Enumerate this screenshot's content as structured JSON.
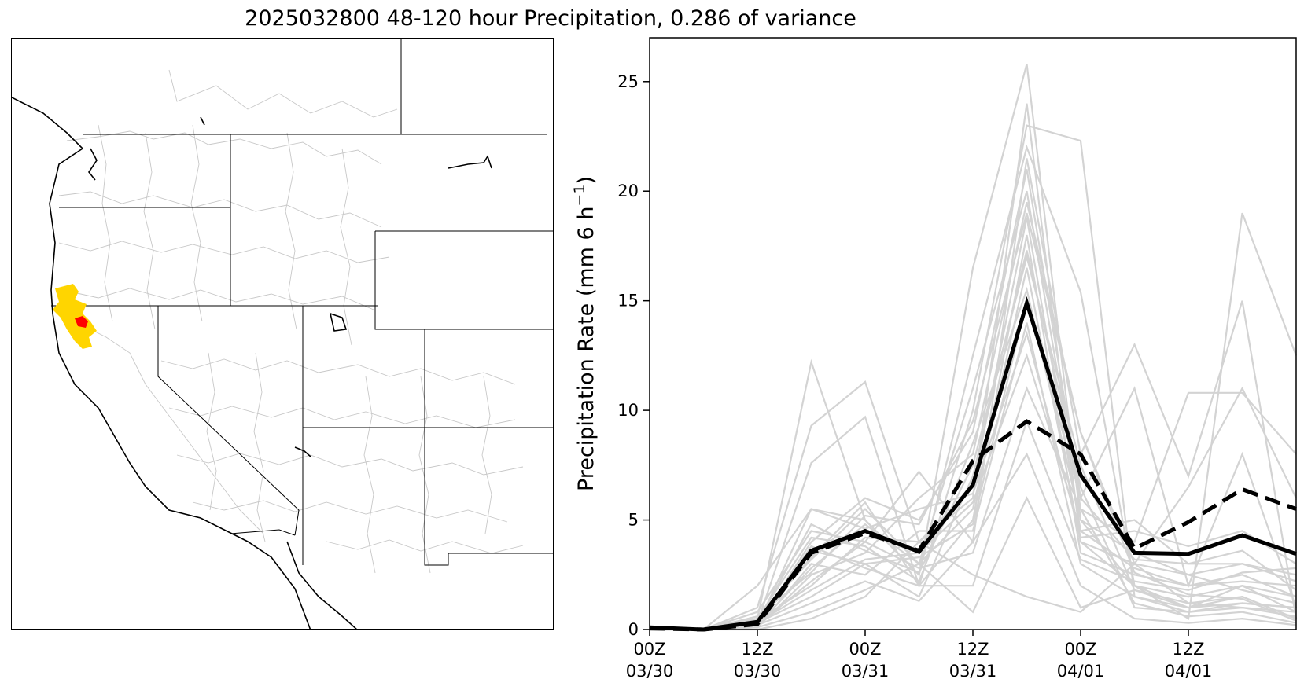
{
  "title": "2025032800 48-120 hour Precipitation, 0.286 of variance",
  "colors": {
    "member_line": "#d3d3d3",
    "ens_mean_line": "#000000",
    "basin_outline": "#c8c8c8",
    "highlight_region": "#ffd500",
    "highlight_core": "#ff0000"
  },
  "map": {
    "projection": "Lambert Conformal, Western United States",
    "highlight_region_location": "Northern California coast"
  },
  "chart_data": {
    "type": "line",
    "title": "",
    "xlabel": "",
    "ylabel": "Precipitation Rate (mm 6 h",
    "ylabel_exponent": "−1",
    "ylabel_suffix": ")",
    "ylim": [
      0,
      27
    ],
    "yticks": [
      0,
      5,
      10,
      15,
      20,
      25
    ],
    "x": [
      "2025-03-30 00Z",
      "2025-03-30 06Z",
      "2025-03-30 12Z",
      "2025-03-30 18Z",
      "2025-03-31 00Z",
      "2025-03-31 06Z",
      "2025-03-31 12Z",
      "2025-03-31 18Z",
      "2025-04-01 00Z",
      "2025-04-01 06Z",
      "2025-04-01 12Z",
      "2025-04-01 18Z",
      "2025-04-02 00Z"
    ],
    "xticks": [
      {
        "index": 0,
        "line1": "00Z",
        "line2": "03/30"
      },
      {
        "index": 2,
        "line1": "12Z",
        "line2": "03/30"
      },
      {
        "index": 4,
        "line1": "00Z",
        "line2": "03/31"
      },
      {
        "index": 6,
        "line1": "12Z",
        "line2": "03/31"
      },
      {
        "index": 8,
        "line1": "00Z",
        "line2": "04/01"
      },
      {
        "index": 10,
        "line1": "12Z",
        "line2": "04/01"
      }
    ],
    "grid": false,
    "legend": "none",
    "series": [
      {
        "style": "solid-thick",
        "color": "#000000",
        "values": [
          0.1,
          0.0,
          0.35,
          3.6,
          4.5,
          3.55,
          6.6,
          14.9,
          7.05,
          3.5,
          3.45,
          4.3,
          3.45
        ]
      },
      {
        "style": "dashed-thick",
        "color": "#000000",
        "values": [
          0.05,
          0.0,
          0.25,
          3.5,
          4.4,
          3.6,
          7.7,
          9.5,
          8.0,
          3.7,
          4.9,
          6.4,
          5.5
        ]
      },
      {
        "style": "thin",
        "color": "#d3d3d3",
        "values": [
          0.0,
          0.0,
          0.5,
          12.2,
          5.0,
          2.5,
          16.5,
          25.8,
          5.0,
          2.0,
          1.0,
          2.0,
          1.5
        ]
      },
      {
        "style": "thin",
        "color": "#d3d3d3",
        "values": [
          0.0,
          0.0,
          1.0,
          9.3,
          11.3,
          4.0,
          6.0,
          24.0,
          4.0,
          3.0,
          1.2,
          1.5,
          0.5
        ]
      },
      {
        "style": "thin",
        "color": "#d3d3d3",
        "values": [
          0.0,
          0.0,
          0.3,
          7.6,
          9.7,
          2.0,
          10.0,
          23.0,
          22.3,
          1.5,
          0.8,
          1.0,
          0.8
        ]
      },
      {
        "style": "thin",
        "color": "#d3d3d3",
        "values": [
          0.0,
          0.0,
          2.0,
          5.5,
          5.0,
          2.5,
          12.5,
          22.0,
          15.4,
          2.0,
          0.5,
          19.0,
          12.5
        ]
      },
      {
        "style": "thin",
        "color": "#d3d3d3",
        "values": [
          0.0,
          0.0,
          0.8,
          4.5,
          4.0,
          7.2,
          4.0,
          21.5,
          8.0,
          13.0,
          7.0,
          15.0,
          0.5
        ]
      },
      {
        "style": "thin",
        "color": "#d3d3d3",
        "values": [
          0.0,
          0.0,
          0.2,
          4.0,
          6.0,
          5.0,
          9.0,
          21.0,
          6.0,
          11.0,
          2.0,
          8.0,
          1.0
        ]
      },
      {
        "style": "thin",
        "color": "#d3d3d3",
        "values": [
          0.0,
          0.0,
          0.6,
          3.2,
          5.5,
          3.0,
          11.0,
          20.0,
          5.5,
          4.0,
          10.8,
          10.8,
          8.0
        ]
      },
      {
        "style": "thin",
        "color": "#d3d3d3",
        "values": [
          0.0,
          0.0,
          0.1,
          2.5,
          3.5,
          6.0,
          8.0,
          19.5,
          9.0,
          3.0,
          6.5,
          11.0,
          6.0
        ]
      },
      {
        "style": "thin",
        "color": "#d3d3d3",
        "values": [
          0.0,
          0.0,
          0.4,
          2.0,
          4.2,
          4.0,
          6.5,
          18.8,
          4.5,
          5.0,
          3.0,
          3.0,
          2.5
        ]
      },
      {
        "style": "thin",
        "color": "#d3d3d3",
        "values": [
          0.0,
          0.0,
          0.2,
          3.8,
          2.8,
          2.0,
          5.0,
          18.0,
          3.5,
          2.5,
          2.0,
          2.5,
          1.5
        ]
      },
      {
        "style": "thin",
        "color": "#d3d3d3",
        "values": [
          0.0,
          0.0,
          0.3,
          1.5,
          3.0,
          1.5,
          7.0,
          17.3,
          6.5,
          1.0,
          0.8,
          1.2,
          1.0
        ]
      },
      {
        "style": "thin",
        "color": "#d3d3d3",
        "values": [
          0.0,
          0.0,
          0.2,
          2.8,
          4.8,
          3.0,
          5.5,
          16.5,
          4.0,
          2.0,
          1.5,
          2.0,
          0.8
        ]
      },
      {
        "style": "thin",
        "color": "#d3d3d3",
        "values": [
          0.0,
          0.0,
          0.5,
          4.2,
          3.8,
          2.2,
          8.5,
          15.5,
          5.0,
          3.5,
          2.5,
          1.8,
          1.2
        ]
      },
      {
        "style": "thin",
        "color": "#d3d3d3",
        "values": [
          0.0,
          0.0,
          0.1,
          3.0,
          2.5,
          4.5,
          4.5,
          14.0,
          3.0,
          1.5,
          1.0,
          1.5,
          0.5
        ]
      },
      {
        "style": "thin",
        "color": "#d3d3d3",
        "values": [
          0.0,
          0.0,
          0.3,
          1.8,
          3.2,
          3.5,
          5.8,
          12.5,
          4.5,
          2.8,
          2.0,
          2.2,
          2.0
        ]
      },
      {
        "style": "thin",
        "color": "#d3d3d3",
        "values": [
          0.0,
          0.0,
          0.2,
          2.2,
          4.0,
          2.8,
          3.5,
          11.0,
          5.5,
          1.2,
          0.6,
          0.8,
          0.3
        ]
      },
      {
        "style": "thin",
        "color": "#d3d3d3",
        "values": [
          0.0,
          0.0,
          0.4,
          3.3,
          5.8,
          2.0,
          2.0,
          9.5,
          3.2,
          2.2,
          1.8,
          2.6,
          2.8
        ]
      },
      {
        "style": "thin",
        "color": "#d3d3d3",
        "values": [
          0.0,
          0.0,
          0.2,
          1.2,
          2.2,
          1.3,
          4.0,
          8.0,
          2.0,
          0.5,
          0.3,
          0.5,
          0.2
        ]
      },
      {
        "style": "thin",
        "color": "#d3d3d3",
        "values": [
          0.0,
          0.0,
          0.1,
          0.8,
          1.8,
          3.0,
          0.8,
          6.0,
          1.0,
          1.8,
          1.0,
          1.2,
          1.0
        ]
      },
      {
        "style": "thin",
        "color": "#d3d3d3",
        "values": [
          0.0,
          0.0,
          0.0,
          0.5,
          1.5,
          4.0,
          2.5,
          1.5,
          0.8,
          3.0,
          2.5,
          3.0,
          2.2
        ]
      },
      {
        "style": "thin",
        "color": "#d3d3d3",
        "values": [
          0.0,
          0.0,
          0.2,
          5.5,
          4.6,
          5.5,
          6.2,
          13.5,
          4.2,
          4.5,
          3.8,
          4.5,
          3.0
        ]
      },
      {
        "style": "thin",
        "color": "#d3d3d3",
        "values": [
          0.0,
          0.0,
          0.3,
          4.8,
          3.6,
          2.6,
          7.5,
          17.0,
          7.5,
          1.8,
          1.2,
          1.0,
          0.6
        ]
      },
      {
        "style": "thin",
        "color": "#d3d3d3",
        "values": [
          0.0,
          0.0,
          0.6,
          2.6,
          5.2,
          4.8,
          9.5,
          19.0,
          9.0,
          2.6,
          1.6,
          1.4,
          0.4
        ]
      },
      {
        "style": "thin",
        "color": "#d3d3d3",
        "values": [
          0.0,
          0.0,
          0.1,
          3.6,
          3.0,
          3.3,
          4.8,
          15.0,
          6.0,
          3.2,
          3.0,
          3.6,
          1.8
        ]
      }
    ]
  }
}
